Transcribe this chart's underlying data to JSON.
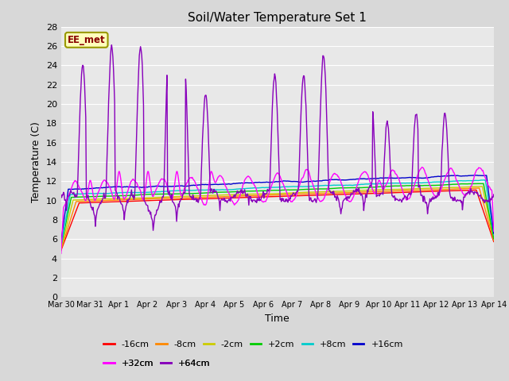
{
  "title": "Soil/Water Temperature Set 1",
  "xlabel": "Time",
  "ylabel": "Temperature (C)",
  "ylim": [
    0,
    28
  ],
  "bg_color": "#d8d8d8",
  "plot_bg": "#e8e8e8",
  "annotation_label": "EE_met",
  "xtick_labels": [
    "Mar 30",
    "Mar 31",
    "Apr 1",
    "Apr 2",
    "Apr 3",
    "Apr 4",
    "Apr 5",
    "Apr 6",
    "Apr 7",
    "Apr 8",
    "Apr 9",
    "Apr 10",
    "Apr 11",
    "Apr 12",
    "Apr 13",
    "Apr 14"
  ],
  "ytick_vals": [
    0,
    2,
    4,
    6,
    8,
    10,
    12,
    14,
    16,
    18,
    20,
    22,
    24,
    26,
    28
  ],
  "series": [
    {
      "label": "-16cm",
      "color": "#ff0000"
    },
    {
      "label": "-8cm",
      "color": "#ff8800"
    },
    {
      "label": "-2cm",
      "color": "#cccc00"
    },
    {
      "label": "+2cm",
      "color": "#00cc00"
    },
    {
      "label": "+8cm",
      "color": "#00cccc"
    },
    {
      "label": "+16cm",
      "color": "#0000cc"
    },
    {
      "label": "+32cm",
      "color": "#ff00ff"
    },
    {
      "label": "+64cm",
      "color": "#8800bb"
    }
  ]
}
